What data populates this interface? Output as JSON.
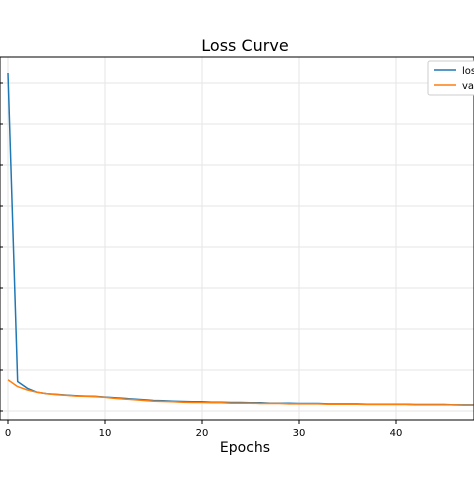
{
  "chart_data": {
    "type": "line",
    "title": "Loss Curve",
    "xlabel": "Epochs",
    "ylabel": "",
    "xlim": [
      -1,
      48
    ],
    "ylim": [
      0,
      1
    ],
    "grid": true,
    "legend_position": "top-right",
    "x_ticks": [
      0,
      10,
      20,
      30,
      40
    ],
    "x_tick_labels": [
      "0",
      "10",
      "20",
      "30",
      "40"
    ],
    "series": [
      {
        "name": "los",
        "color": "#1f77b4",
        "x": [
          0,
          1,
          2,
          3,
          4,
          5,
          6,
          7,
          8,
          9,
          10,
          11,
          12,
          13,
          14,
          15,
          16,
          17,
          18,
          19,
          20,
          21,
          22,
          23,
          24,
          25,
          26,
          27,
          28,
          29,
          30,
          31,
          32,
          33,
          34,
          35,
          36,
          37,
          38,
          39,
          40,
          41,
          42,
          43,
          44,
          45,
          46,
          47,
          48
        ],
        "y": [
          1.0,
          0.09,
          0.07,
          0.058,
          0.054,
          0.052,
          0.05,
          0.048,
          0.047,
          0.046,
          0.044,
          0.042,
          0.04,
          0.038,
          0.036,
          0.034,
          0.033,
          0.032,
          0.031,
          0.03,
          0.03,
          0.029,
          0.029,
          0.028,
          0.028,
          0.027,
          0.027,
          0.026,
          0.026,
          0.026,
          0.025,
          0.025,
          0.025,
          0.024,
          0.024,
          0.024,
          0.024,
          0.023,
          0.023,
          0.023,
          0.023,
          0.023,
          0.022,
          0.022,
          0.022,
          0.022,
          0.021,
          0.021,
          0.021
        ]
      },
      {
        "name": "va",
        "color": "#ff7f0e",
        "x": [
          0,
          1,
          2,
          3,
          4,
          5,
          6,
          7,
          8,
          9,
          10,
          11,
          12,
          13,
          14,
          15,
          16,
          17,
          18,
          19,
          20,
          21,
          22,
          23,
          24,
          25,
          26,
          27,
          28,
          29,
          30,
          31,
          32,
          33,
          34,
          35,
          36,
          37,
          38,
          39,
          40,
          41,
          42,
          43,
          44,
          45,
          46,
          47,
          48
        ],
        "y": [
          0.095,
          0.075,
          0.065,
          0.058,
          0.054,
          0.051,
          0.049,
          0.047,
          0.046,
          0.045,
          0.043,
          0.04,
          0.038,
          0.036,
          0.034,
          0.032,
          0.031,
          0.03,
          0.029,
          0.028,
          0.028,
          0.027,
          0.027,
          0.026,
          0.026,
          0.026,
          0.025,
          0.025,
          0.025,
          0.024,
          0.024,
          0.024,
          0.024,
          0.023,
          0.023,
          0.023,
          0.023,
          0.022,
          0.022,
          0.022,
          0.022,
          0.022,
          0.021,
          0.021,
          0.021,
          0.021,
          0.021,
          0.02,
          0.02
        ]
      }
    ]
  }
}
